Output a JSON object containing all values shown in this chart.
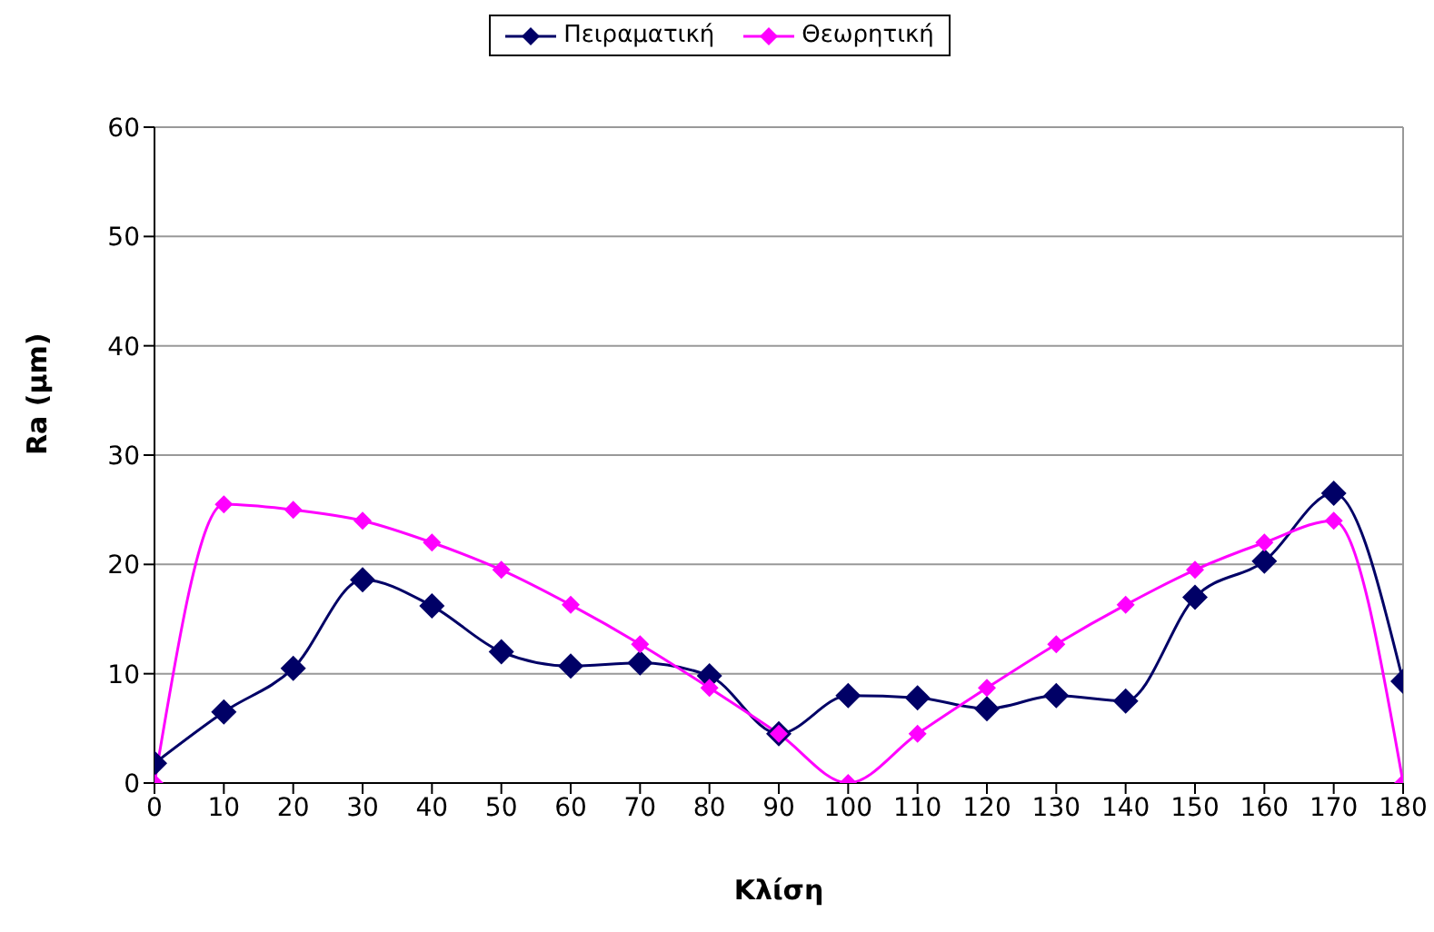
{
  "chart_data": {
    "type": "line",
    "xlabel": "Κλίση",
    "ylabel": "Ra  (μm)",
    "categories": [
      "0",
      "10",
      "20",
      "30",
      "40",
      "50",
      "60",
      "70",
      "80",
      "90",
      "100",
      "110",
      "120",
      "130",
      "140",
      "150",
      "160",
      "170",
      "180"
    ],
    "series": [
      {
        "name": "Πειραματική",
        "color": "#000066",
        "values": [
          1.8,
          6.5,
          10.5,
          18.6,
          16.2,
          12,
          10.7,
          11,
          9.8,
          4.5,
          8,
          7.8,
          6.8,
          8,
          7.5,
          17,
          20.3,
          26.5,
          9.3
        ]
      },
      {
        "name": "Θεωρητική",
        "color": "#ff00ff",
        "values": [
          0,
          25.5,
          25,
          24,
          22,
          19.5,
          16.3,
          12.7,
          8.7,
          4.5,
          0,
          4.5,
          8.7,
          12.7,
          16.3,
          19.5,
          22,
          24,
          0
        ]
      }
    ],
    "ylim": [
      0,
      60
    ],
    "yticks": [
      0,
      10,
      20,
      30,
      40,
      50,
      60
    ],
    "grid": "y",
    "legend": "top",
    "marker": "diamond",
    "line_style": "solid"
  }
}
